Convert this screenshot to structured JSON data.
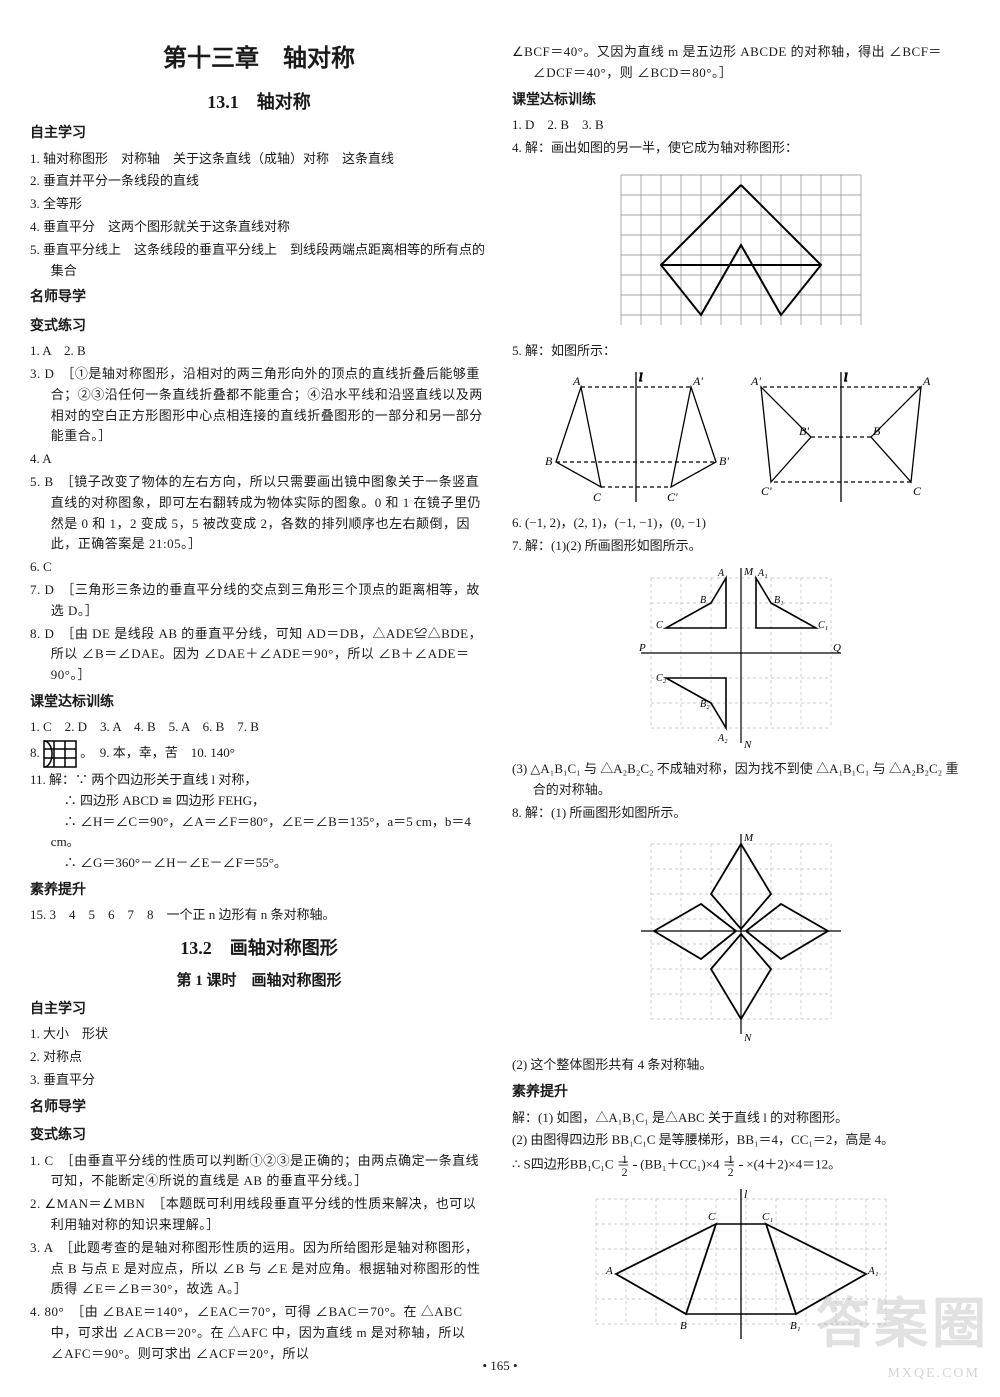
{
  "page_number": "• 165 •",
  "watermark_main": "答案圈",
  "watermark_sub": "MXQE.COM",
  "left": {
    "chapter": "第十三章　轴对称",
    "sec131": "13.1　轴对称",
    "h_zizhu": "自主学习",
    "zz": [
      "1. 轴对称图形　对称轴　关于这条直线（成轴）对称　这条直线",
      "2. 垂直并平分一条线段的直线",
      "3. 全等形",
      "4. 垂直平分　这两个图形就关于这条直线对称",
      "5. 垂直平分线上　这条线段的垂直平分线上　到线段两端点距离相等的所有点的集合"
    ],
    "h_msdx": "名师导学",
    "h_bslx": "变式练习",
    "bs1": "1. A　2. B",
    "bs3": "3. D　［①是轴对称图形，沿相对的两三角形向外的顶点的直线折叠后能够重合；②③沿任何一条直线折叠都不能重合；④沿水平线和沿竖直线以及两相对的空白正方形图形中心点相连接的直线折叠图形的一部分和另一部分能重合。］",
    "bs4": "4. A",
    "bs5": "5. B　［镜子改变了物体的左右方向，所以只需要画出镜中图象关于一条竖直直线的对称图象，即可左右翻转成为物体实际的图象。0 和 1 在镜子里仍然是 0 和 1，2 变成 5，5 被改变成 2，各数的排列顺序也左右颠倒，因此，正确答案是 21:05。］",
    "bs6": "6. C",
    "bs7": "7. D　［三角形三条边的垂直平分线的交点到三角形三个顶点的距离相等，故选 D。］",
    "bs8": "8. D　［由 DE 是线段 AB 的垂直平分线，可知 AD＝DB，△ADE≌△BDE，所以 ∠B＝∠DAE。因为 ∠DAE＋∠ADE＝90°，所以 ∠B＋∠ADE＝90°。］",
    "h_ktdb": "课堂达标训练",
    "kt_line": "1. C　2. D　3. A　4. B　5. A　6. B　7. B",
    "kt8_pre": "8. ",
    "kt8_post": " 。　9. 本，幸，苦　10. 140°",
    "kt11": "11. 解：∵ 两个四边形关于直线 l 对称，\n　∴ 四边形 ABCD ≌ 四边形 FEHG，\n　∴ ∠H＝∠C＝90°，∠A＝∠F＝80°，∠E＝∠B＝135°，a＝5 cm，b＝4 cm。\n　∴ ∠G＝360°－∠H－∠E－∠F＝55°。",
    "h_syts": "素养提升",
    "sy15": "15. 3　4　5　6　7　8　一个正 n 边形有 n 条对称轴。",
    "sec132": "13.2　画轴对称图形",
    "lesson1": "第 1 课时　画轴对称图形",
    "zz2": [
      "1. 大小　形状",
      "2. 对称点",
      "3. 垂直平分"
    ],
    "bs2_1": "1. C　［由垂直平分线的性质可以判断①②③是正确的；由两点确定一条直线可知，不能断定④所说的直线是 AB 的垂直平分线。］",
    "bs2_2": "2. ∠MAN＝∠MBN　［本题既可利用线段垂直平分线的性质来解决，也可以利用轴对称的知识来理解。］",
    "bs2_3": "3. A　［此题考查的是轴对称图形性质的运用。因为所给图形是轴对称图形，点 B 与点 E 是对应点，所以 ∠B 与 ∠E 是对应角。根据轴对称图形的性质得 ∠E＝∠B＝30°，故选 A。］",
    "bs2_4": "4. 80°　［由 ∠BAE＝140°，∠EAC＝70°，可得 ∠BAC＝70°。在 △ABC 中，可求出 ∠ACB＝20°。在 △AFC 中，因为直线 m 是对称轴，所以 ∠AFC＝90°。则可求出 ∠ACF＝20°，所以"
  },
  "right": {
    "cont": "∠BCF＝40°。又因为直线 m 是五边形 ABCDE 的对称轴，得出 ∠BCF＝∠DCF＝40°，则 ∠BCD＝80°。］",
    "h_ktdb": "课堂达标训练",
    "kt_line": "1. D　2. B　3. B",
    "kt4": "4. 解：画出如图的另一半，使它成为轴对称图形：",
    "kt5": "5. 解：如图所示：",
    "kt6": "6. (−1, 2)，(2, 1)，(−1, −1)，(0, −1)",
    "kt7": "7. 解：(1)(2) 所画图形如图所示。",
    "kt7_3": "(3) △A₁B₁C₁ 与 △A₂B₂C₂ 不成轴对称，因为找不到使 △A₁B₁C₁ 与 △A₂B₂C₂ 重合的对称轴。",
    "kt8": "8. 解：(1) 所画图形如图所示。",
    "kt8_2": "(2) 这个整体图形共有 4 条对称轴。",
    "h_syts": "素养提升",
    "sy1": "解：(1) 如图，△A₁B₁C₁ 是△ABC 关于直线 l 的对称图形。",
    "sy2": "(2) 由图得四边形 BB₁C₁C 是等腰梯形，BB₁＝4，CC₁＝2，高是 4。",
    "sy_calc_pre": "∴ S四边形BB₁C₁C ＝ ",
    "sy_calc_mid1": "(BB₁＋CC₁)×4 ＝ ",
    "sy_calc_post": "×(4＋2)×4＝12。"
  },
  "figures": {
    "grid_color": "#666",
    "line_color": "#000",
    "dash": "4,3",
    "font": "13px serif"
  }
}
